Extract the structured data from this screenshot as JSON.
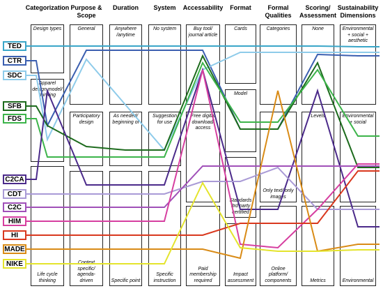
{
  "columns": [
    {
      "header": "Categorization",
      "boxes": [
        "Design types",
        "Apparel design model/ thinking",
        "Life cycle thinking"
      ]
    },
    {
      "header": "Purpose & Scope",
      "boxes": [
        "General",
        "Participatory design",
        "Context specific/ agenda-driven"
      ]
    },
    {
      "header": "Duration",
      "boxes": [
        "Anywhere /anytime",
        "As needed/ beginning of",
        "Specific point"
      ]
    },
    {
      "header": "System",
      "boxes": [
        "No system",
        "Suggestion for use",
        "Specific instruction"
      ]
    },
    {
      "header": "Accessability",
      "boxes": [
        "Buy tool/ journal article",
        "Free digital download/ access",
        "Paid membership required"
      ]
    },
    {
      "header": "Format",
      "boxes": [
        "Cards",
        "Model",
        "Standards 3rd party certified",
        "Impact assessment"
      ]
    },
    {
      "header": "Formal Qualities",
      "boxes": [
        "Categories",
        "Only text/ only images",
        "Online platform/ components"
      ]
    },
    {
      "header": "Scoring/ Assessment",
      "boxes": [
        "None",
        "Levels",
        "Metrics"
      ]
    },
    {
      "header": "Sustainability Dimensions",
      "boxes": [
        "Environmental + social + aesthetic",
        "Environmental + social",
        "Environmental"
      ]
    }
  ],
  "tools": [
    {
      "name": "TED",
      "color": "#3aa6c8"
    },
    {
      "name": "CTR",
      "color": "#3b5fb0"
    },
    {
      "name": "SDC",
      "color": "#8ecbea"
    },
    {
      "name": "SFB",
      "color": "#1d6b1d"
    },
    {
      "name": "FDS",
      "color": "#3cb44a"
    },
    {
      "name": "C2CA",
      "color": "#4b2a8a"
    },
    {
      "name": "CDT",
      "color": "#a99ad6"
    },
    {
      "name": "C2C",
      "color": "#a050b8"
    },
    {
      "name": "HIM",
      "color": "#d63fa0"
    },
    {
      "name": "HI",
      "color": "#d9381e"
    },
    {
      "name": "MADE",
      "color": "#d98b16"
    },
    {
      "name": "NIKE",
      "color": "#e4e42c"
    }
  ]
}
